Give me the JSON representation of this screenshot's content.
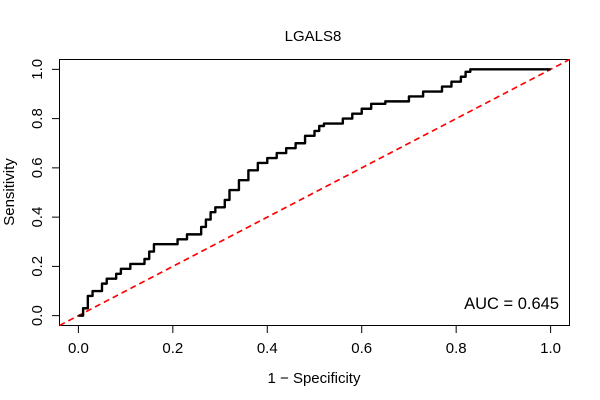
{
  "chart_data": {
    "type": "line",
    "title": "LGALS8",
    "xlabel": "1 − Specificity",
    "ylabel": "Sensitivity",
    "xlim": [
      -0.04,
      1.04
    ],
    "ylim": [
      -0.04,
      1.04
    ],
    "x_ticks": [
      0.0,
      0.2,
      0.4,
      0.6,
      0.8,
      1.0
    ],
    "y_ticks": [
      0.0,
      0.2,
      0.4,
      0.6,
      0.8,
      1.0
    ],
    "x_tick_labels": [
      "0.0",
      "0.2",
      "0.4",
      "0.6",
      "0.8",
      "1.0"
    ],
    "y_tick_labels": [
      "0.0",
      "0.2",
      "0.4",
      "0.6",
      "0.8",
      "1.0"
    ],
    "annotation": "AUC = 0.645",
    "grid": false,
    "series": [
      {
        "color": "#000000",
        "style": "solid",
        "x": [
          0.0,
          0.01,
          0.01,
          0.02,
          0.02,
          0.03,
          0.03,
          0.05,
          0.05,
          0.06,
          0.06,
          0.08,
          0.08,
          0.09,
          0.09,
          0.11,
          0.11,
          0.14,
          0.14,
          0.15,
          0.15,
          0.16,
          0.16,
          0.21,
          0.21,
          0.23,
          0.23,
          0.26,
          0.26,
          0.27,
          0.27,
          0.28,
          0.28,
          0.29,
          0.29,
          0.31,
          0.31,
          0.32,
          0.32,
          0.34,
          0.34,
          0.36,
          0.36,
          0.38,
          0.38,
          0.4,
          0.4,
          0.42,
          0.42,
          0.44,
          0.44,
          0.46,
          0.46,
          0.48,
          0.48,
          0.5,
          0.5,
          0.51,
          0.51,
          0.52,
          0.52,
          0.56,
          0.56,
          0.58,
          0.58,
          0.6,
          0.6,
          0.62,
          0.62,
          0.65,
          0.65,
          0.7,
          0.7,
          0.73,
          0.73,
          0.77,
          0.77,
          0.79,
          0.79,
          0.81,
          0.81,
          0.82,
          0.82,
          0.83,
          0.83,
          1.0
        ],
        "y": [
          0.0,
          0.0,
          0.03,
          0.03,
          0.08,
          0.08,
          0.1,
          0.1,
          0.13,
          0.13,
          0.15,
          0.15,
          0.17,
          0.17,
          0.19,
          0.19,
          0.21,
          0.21,
          0.23,
          0.23,
          0.26,
          0.26,
          0.29,
          0.29,
          0.31,
          0.31,
          0.33,
          0.33,
          0.36,
          0.36,
          0.39,
          0.39,
          0.42,
          0.42,
          0.44,
          0.44,
          0.47,
          0.47,
          0.51,
          0.51,
          0.55,
          0.55,
          0.59,
          0.59,
          0.62,
          0.62,
          0.64,
          0.64,
          0.66,
          0.66,
          0.68,
          0.68,
          0.7,
          0.7,
          0.73,
          0.73,
          0.75,
          0.75,
          0.77,
          0.77,
          0.78,
          0.78,
          0.8,
          0.8,
          0.82,
          0.82,
          0.84,
          0.84,
          0.86,
          0.86,
          0.87,
          0.87,
          0.89,
          0.89,
          0.91,
          0.91,
          0.93,
          0.93,
          0.95,
          0.95,
          0.97,
          0.97,
          0.99,
          0.99,
          1.0,
          1.0
        ]
      },
      {
        "color": "#ff0000",
        "style": "dashed",
        "x": [
          -0.04,
          1.04
        ],
        "y": [
          -0.04,
          1.04
        ]
      }
    ]
  }
}
